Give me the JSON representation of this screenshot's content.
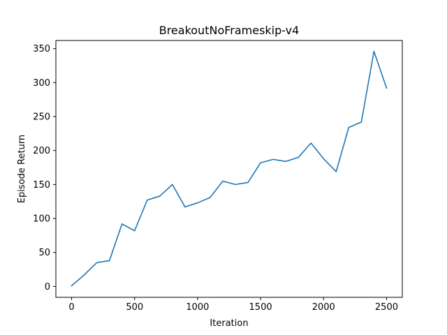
{
  "chart_data": {
    "type": "line",
    "title": "BreakoutNoFrameskip-v4",
    "xlabel": "Iteration",
    "ylabel": "Episode Return",
    "xlim": [
      -125,
      2625
    ],
    "ylim": [
      -16,
      362
    ],
    "xticks": [
      0,
      500,
      1000,
      1500,
      2000,
      2500
    ],
    "yticks": [
      0,
      50,
      100,
      150,
      200,
      250,
      300,
      350
    ],
    "grid": false,
    "series": [
      {
        "name": "Episode Return",
        "color": "#1f77b4",
        "x": [
          0,
          100,
          200,
          300,
          400,
          500,
          600,
          700,
          800,
          900,
          1000,
          1100,
          1200,
          1300,
          1400,
          1500,
          1600,
          1700,
          1800,
          1900,
          2000,
          2100,
          2200,
          2300,
          2400,
          2500
        ],
        "y": [
          1,
          17,
          35,
          38,
          92,
          82,
          127,
          133,
          150,
          117,
          123,
          131,
          155,
          150,
          153,
          182,
          187,
          184,
          190,
          211,
          188,
          169,
          234,
          242,
          346,
          292
        ]
      }
    ]
  }
}
